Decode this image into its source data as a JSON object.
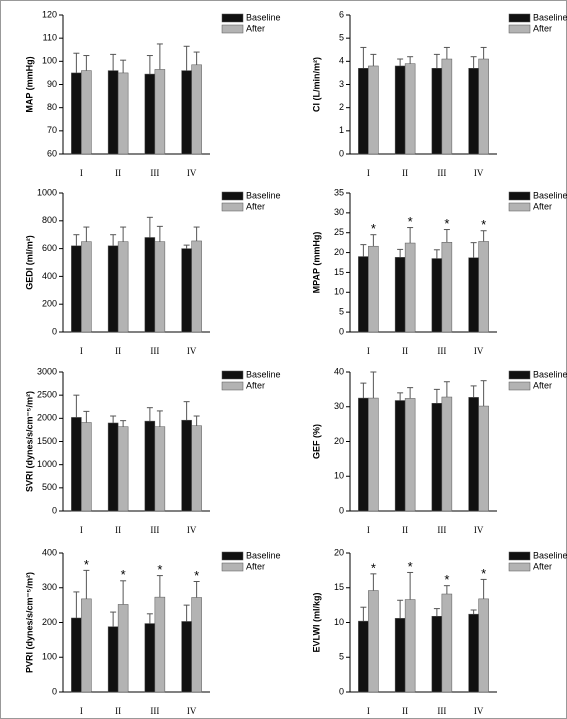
{
  "chart_data": [
    {
      "type": "bar",
      "ylabel": "MAP (mmHg)",
      "categories": [
        "I",
        "II",
        "III",
        "IV"
      ],
      "ylim": [
        60,
        120
      ],
      "yticks": [
        60,
        70,
        80,
        90,
        100,
        110,
        120
      ],
      "series": [
        {
          "name": "Baseline",
          "color": "#111111",
          "values": [
            95,
            96,
            94.5,
            96
          ],
          "errors": [
            8.5,
            7,
            8,
            10.5
          ]
        },
        {
          "name": "After",
          "color": "#b3b3b3",
          "values": [
            96,
            95,
            96.5,
            98.5
          ],
          "errors": [
            6.5,
            5.5,
            11,
            5.5
          ]
        }
      ]
    },
    {
      "type": "bar",
      "ylabel": "CI (L/min/m²)",
      "categories": [
        "I",
        "II",
        "III",
        "IV"
      ],
      "ylim": [
        0,
        6
      ],
      "yticks": [
        0,
        1,
        2,
        3,
        4,
        5,
        6
      ],
      "series": [
        {
          "name": "Baseline",
          "color": "#111111",
          "values": [
            3.7,
            3.8,
            3.7,
            3.7
          ],
          "errors": [
            0.9,
            0.3,
            0.6,
            0.5
          ]
        },
        {
          "name": "After",
          "color": "#b3b3b3",
          "values": [
            3.8,
            3.9,
            4.1,
            4.1
          ],
          "errors": [
            0.5,
            0.3,
            0.5,
            0.5
          ]
        }
      ]
    },
    {
      "type": "bar",
      "ylabel": "GEDI (ml/m²)",
      "categories": [
        "I",
        "II",
        "III",
        "IV"
      ],
      "ylim": [
        0,
        1000
      ],
      "yticks": [
        0,
        200,
        400,
        600,
        800,
        1000
      ],
      "series": [
        {
          "name": "Baseline",
          "color": "#111111",
          "values": [
            620,
            620,
            680,
            600
          ],
          "errors": [
            80,
            80,
            145,
            25
          ]
        },
        {
          "name": "After",
          "color": "#b3b3b3",
          "values": [
            650,
            650,
            650,
            655
          ],
          "errors": [
            105,
            105,
            110,
            100
          ]
        }
      ]
    },
    {
      "type": "bar",
      "ylabel": "MPAP (mmHg)",
      "categories": [
        "I",
        "II",
        "III",
        "IV"
      ],
      "ylim": [
        0,
        35
      ],
      "yticks": [
        0,
        5,
        10,
        15,
        20,
        25,
        30,
        35
      ],
      "series": [
        {
          "name": "Baseline",
          "color": "#111111",
          "values": [
            19,
            18.8,
            18.5,
            18.7
          ],
          "errors": [
            3,
            2,
            2.2,
            3.8
          ]
        },
        {
          "name": "After",
          "color": "#b3b3b3",
          "values": [
            21.6,
            22.4,
            22.6,
            22.8
          ],
          "errors": [
            2.9,
            3.9,
            3.2,
            2.7
          ],
          "significance": [
            "*",
            "*",
            "*",
            "*"
          ]
        }
      ]
    },
    {
      "type": "bar",
      "ylabel": "SVRI (dynes/s/cm⁻⁵/m²)",
      "categories": [
        "I",
        "II",
        "III",
        "IV"
      ],
      "ylim": [
        0,
        3000
      ],
      "yticks": [
        0,
        500,
        1000,
        1500,
        2000,
        2500,
        3000
      ],
      "series": [
        {
          "name": "Baseline",
          "color": "#111111",
          "values": [
            2020,
            1900,
            1940,
            1960
          ],
          "errors": [
            480,
            150,
            290,
            400
          ]
        },
        {
          "name": "After",
          "color": "#b3b3b3",
          "values": [
            1910,
            1820,
            1820,
            1840
          ],
          "errors": [
            240,
            130,
            340,
            210
          ]
        }
      ]
    },
    {
      "type": "bar",
      "ylabel": "GEF (%)",
      "categories": [
        "I",
        "II",
        "III",
        "IV"
      ],
      "ylim": [
        0,
        40
      ],
      "yticks": [
        0,
        10,
        20,
        30,
        40
      ],
      "series": [
        {
          "name": "Baseline",
          "color": "#111111",
          "values": [
            32.5,
            31.8,
            31,
            32.7
          ],
          "errors": [
            4.3,
            2.2,
            4,
            3.3
          ]
        },
        {
          "name": "After",
          "color": "#b3b3b3",
          "values": [
            32.5,
            32.4,
            32.8,
            30.2
          ],
          "errors": [
            7.5,
            3.1,
            4.4,
            7.3
          ]
        }
      ]
    },
    {
      "type": "bar",
      "ylabel": "PVRI (dynes/s/cm⁻⁵/m²)",
      "categories": [
        "I",
        "II",
        "III",
        "IV"
      ],
      "ylim": [
        0,
        400
      ],
      "yticks": [
        0,
        100,
        200,
        300,
        400
      ],
      "series": [
        {
          "name": "Baseline",
          "color": "#111111",
          "values": [
            213,
            188,
            197,
            203
          ],
          "errors": [
            75,
            42,
            28,
            47
          ]
        },
        {
          "name": "After",
          "color": "#b3b3b3",
          "values": [
            268,
            252,
            273,
            272
          ],
          "errors": [
            82,
            68,
            62,
            46
          ],
          "significance": [
            "*",
            "*",
            "*",
            "*"
          ]
        }
      ]
    },
    {
      "type": "bar",
      "ylabel": "EVLWI (ml/kg)",
      "categories": [
        "I",
        "II",
        "III",
        "IV"
      ],
      "ylim": [
        0,
        20
      ],
      "yticks": [
        0,
        5,
        10,
        15,
        20
      ],
      "series": [
        {
          "name": "Baseline",
          "color": "#111111",
          "values": [
            10.2,
            10.6,
            10.9,
            11.2
          ],
          "errors": [
            2,
            2.6,
            1.1,
            0.6
          ]
        },
        {
          "name": "After",
          "color": "#b3b3b3",
          "values": [
            14.6,
            13.3,
            14.1,
            13.4
          ],
          "errors": [
            2.4,
            3.9,
            1.2,
            2.8
          ],
          "significance": [
            "*",
            "*",
            "*",
            "*"
          ]
        }
      ]
    }
  ]
}
